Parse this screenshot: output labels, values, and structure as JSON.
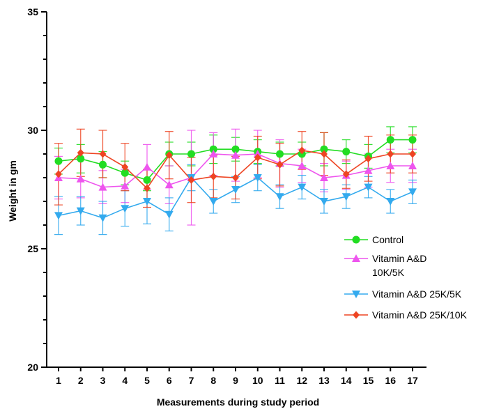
{
  "chart_data": {
    "type": "line",
    "xlabel": "Measurements during study period",
    "ylabel": "Weight in gm",
    "ylim": [
      20,
      35
    ],
    "y_ticks": [
      "20",
      "25",
      "30",
      "35"
    ],
    "x": [
      1,
      2,
      3,
      4,
      5,
      6,
      7,
      8,
      9,
      10,
      11,
      12,
      13,
      14,
      15,
      16,
      17
    ],
    "x_tick_labels": [
      "1",
      "2",
      "3",
      "4",
      "5",
      "6",
      "7",
      "8",
      "9",
      "10",
      "11",
      "12",
      "13",
      "14",
      "15",
      "16",
      "17"
    ],
    "grid": false,
    "legend_position": "right",
    "series": [
      {
        "name": "Control",
        "color": "#22dd22",
        "marker": "circle",
        "values": [
          28.7,
          28.8,
          28.55,
          28.2,
          27.9,
          29.0,
          29.0,
          29.2,
          29.2,
          29.1,
          29.0,
          29.0,
          29.2,
          29.1,
          28.9,
          29.6,
          29.6
        ],
        "errors": [
          0.55,
          0.6,
          0.55,
          0.5,
          0.45,
          0.5,
          0.5,
          0.6,
          0.5,
          0.5,
          0.5,
          0.5,
          0.7,
          0.5,
          0.5,
          0.55,
          0.55
        ]
      },
      {
        "name": "Vitamin A&D 10K/5K",
        "color": "#ee55ee",
        "marker": "triangle-up",
        "values": [
          28.0,
          27.95,
          27.6,
          27.65,
          28.45,
          27.7,
          28.0,
          29.0,
          28.95,
          29.0,
          28.6,
          28.5,
          28.0,
          28.1,
          28.3,
          28.5,
          28.5
        ],
        "errors": [
          0.9,
          0.8,
          0.7,
          0.7,
          0.95,
          0.8,
          2.0,
          0.9,
          1.1,
          1.0,
          1.0,
          0.7,
          0.6,
          0.6,
          0.7,
          0.7,
          0.7
        ]
      },
      {
        "name": "Vitamin A&D 25K/5K",
        "color": "#33aaee",
        "marker": "triangle-down",
        "values": [
          26.4,
          26.6,
          26.3,
          26.7,
          27.0,
          26.45,
          28.0,
          27.0,
          27.5,
          28.0,
          27.2,
          27.6,
          27.0,
          27.2,
          27.6,
          27.0,
          27.4
        ],
        "errors": [
          0.8,
          0.6,
          0.7,
          0.75,
          0.95,
          0.7,
          0.55,
          0.5,
          0.55,
          0.55,
          0.5,
          0.5,
          0.5,
          0.5,
          0.45,
          0.5,
          0.5
        ]
      },
      {
        "name": "Vitamin A&D 25K/10K",
        "color": "#ee4422",
        "marker": "diamond",
        "values": [
          28.15,
          29.05,
          29.0,
          28.45,
          27.55,
          28.95,
          27.9,
          28.05,
          28.0,
          28.85,
          28.55,
          29.15,
          29.0,
          28.15,
          28.8,
          29.0,
          29.0
        ],
        "errors": [
          1.3,
          1.0,
          1.0,
          1.0,
          0.8,
          1.0,
          0.95,
          0.9,
          0.9,
          0.9,
          0.9,
          0.8,
          0.9,
          0.6,
          0.95,
          0.8,
          0.8
        ]
      }
    ],
    "legend_labels": [
      [
        "Control"
      ],
      [
        "Vitamin A&D",
        "10K/5K"
      ],
      [
        "Vitamin A&D 25K/5K"
      ],
      [
        "Vitamin A&D 25K/10K"
      ]
    ]
  }
}
